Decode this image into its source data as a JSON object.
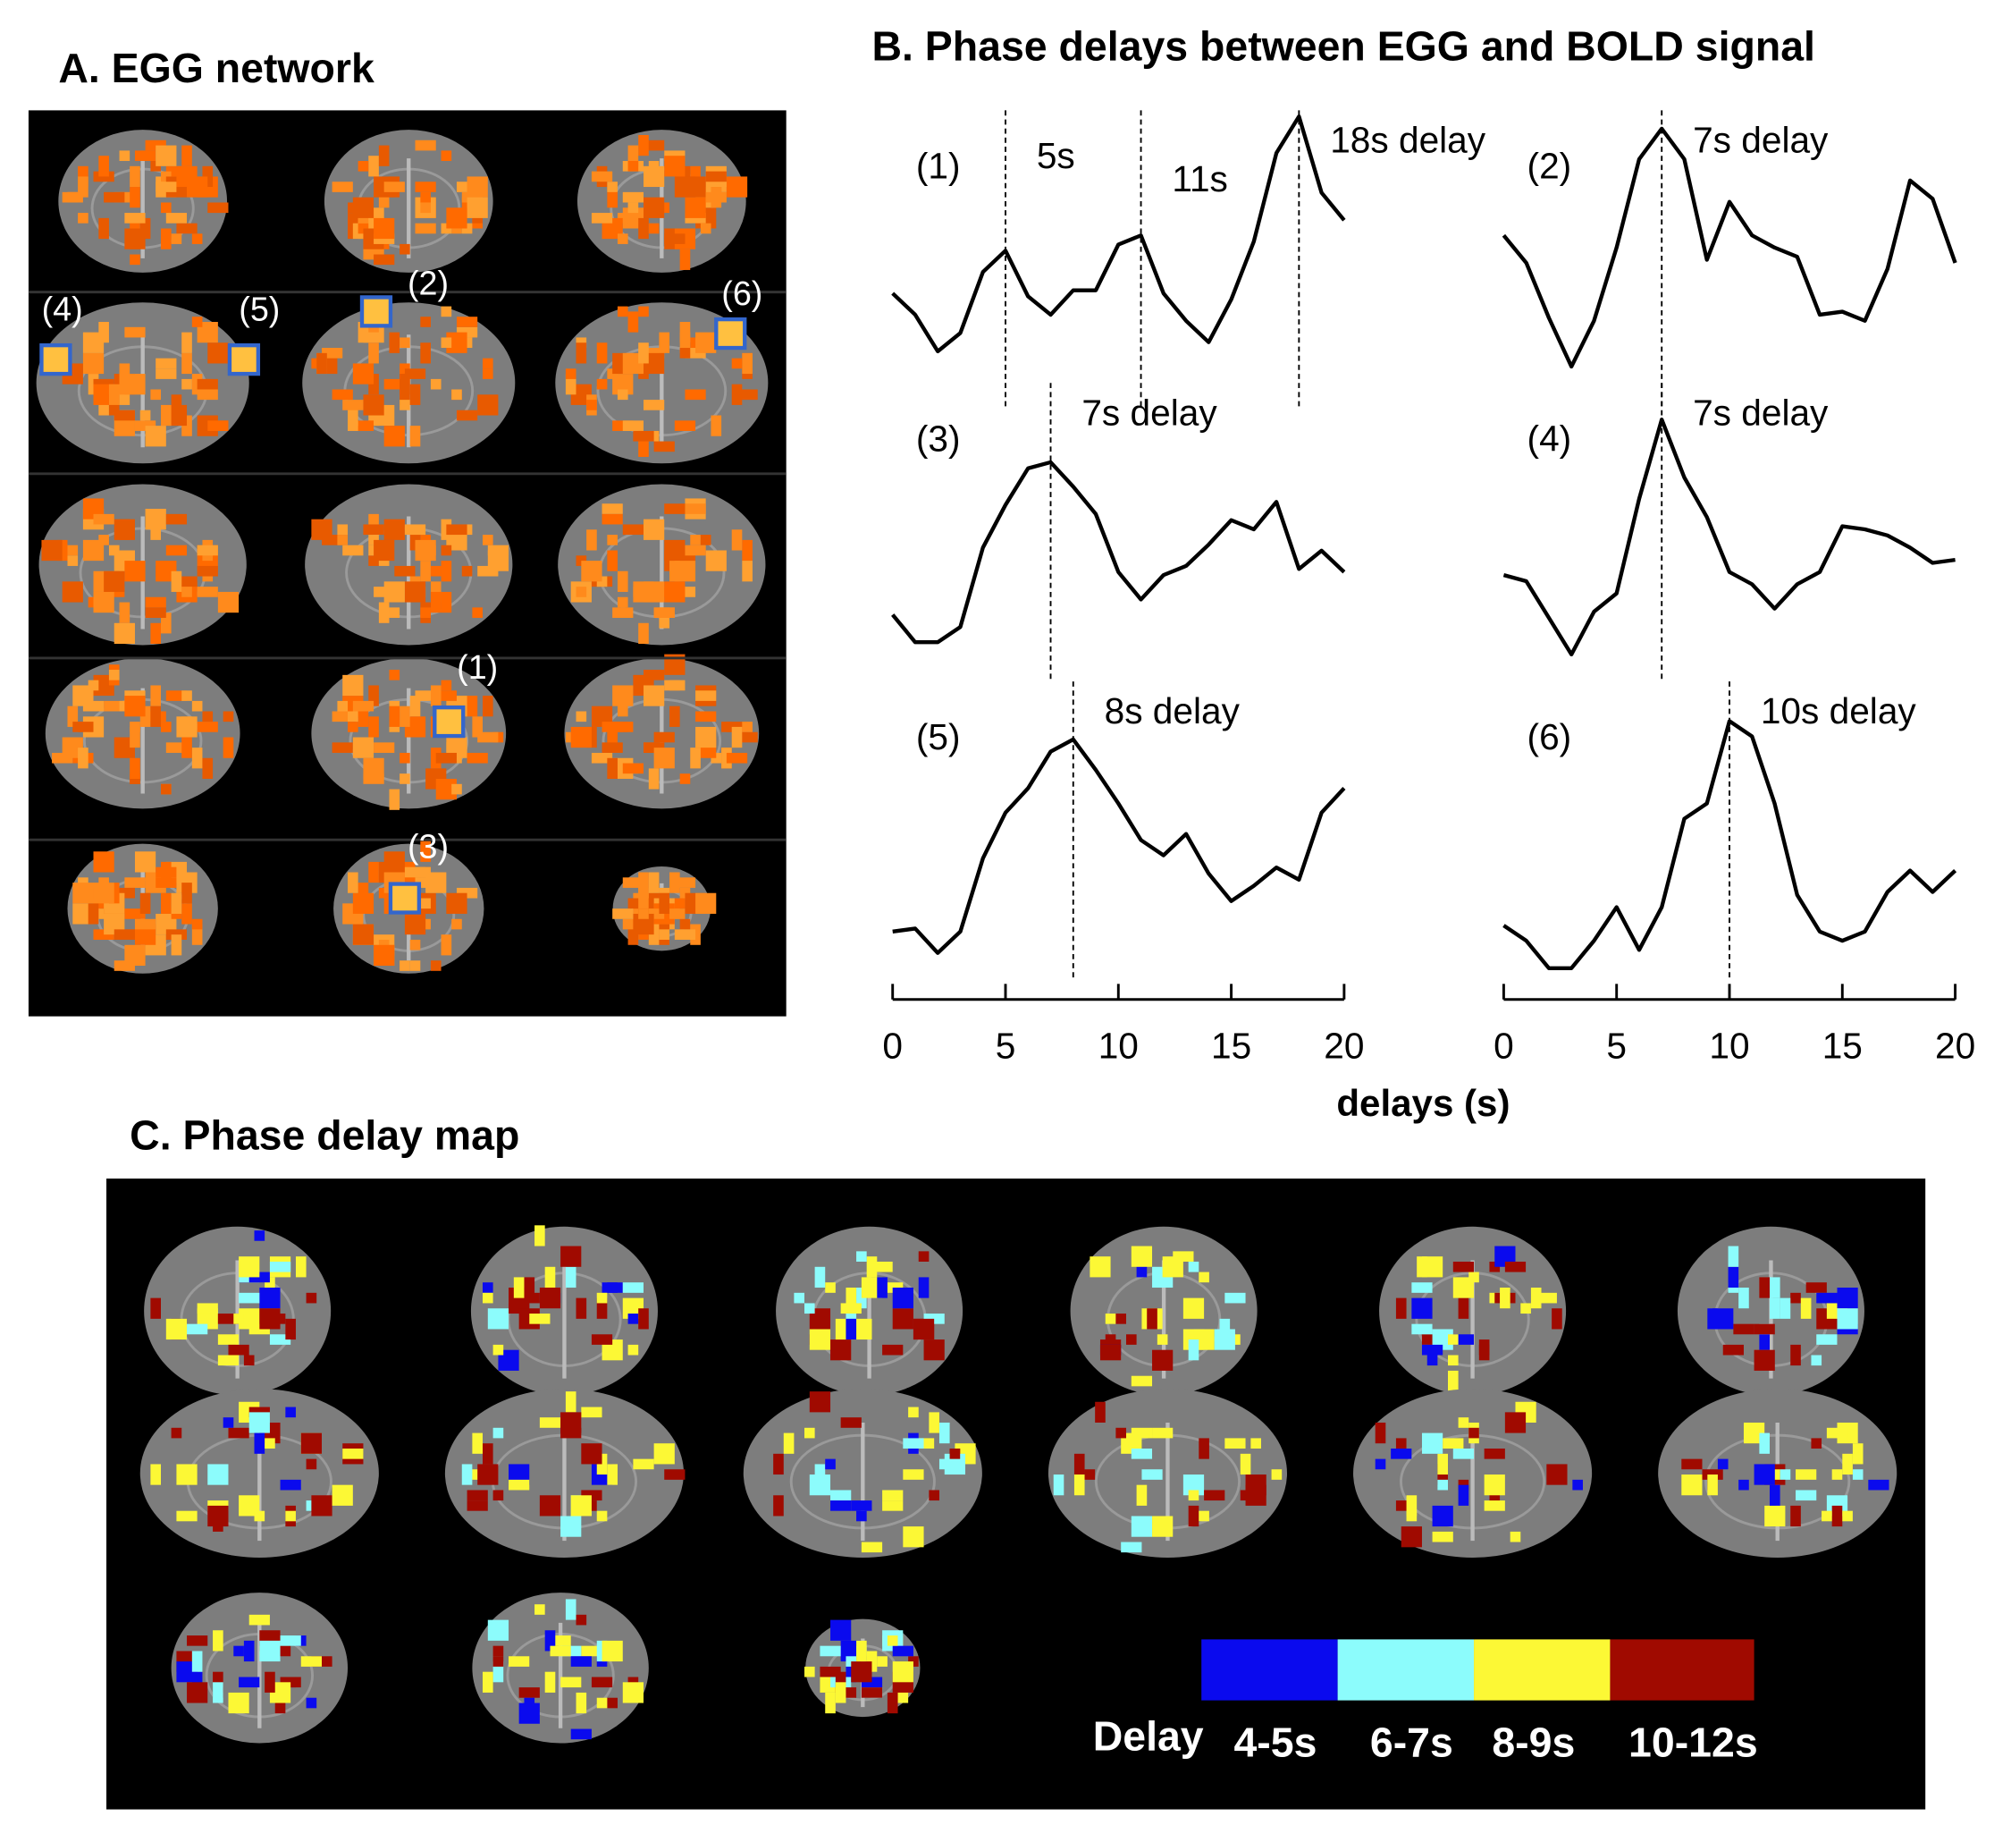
{
  "panel_a": {
    "title": "A. EGG network",
    "roi_labels": [
      "(1)",
      "(2)",
      "(3)",
      "(4)",
      "(5)",
      "(6)"
    ]
  },
  "panel_b": {
    "title": "B. Phase delays between EGG and BOLD signal",
    "x_label": "delays  (s)"
  },
  "chart_data": [
    {
      "type": "line",
      "label": "(1)",
      "xlim": [
        0,
        20
      ],
      "ylim": [
        0,
        10
      ],
      "x": [
        0,
        1,
        2,
        3,
        4,
        5,
        6,
        7,
        8,
        9,
        10,
        11,
        12,
        13,
        14,
        15,
        16,
        17,
        18,
        19,
        20
      ],
      "values": [
        4.0,
        3.3,
        2.1,
        2.7,
        4.7,
        5.4,
        3.9,
        3.3,
        4.1,
        4.1,
        5.6,
        5.9,
        4.0,
        3.1,
        2.4,
        3.8,
        5.7,
        8.6,
        9.8,
        7.3,
        6.4
      ],
      "annotations": [
        {
          "x": 5,
          "label": "5s"
        },
        {
          "x": 11,
          "label": "11s"
        },
        {
          "x": 18,
          "label": "18s delay"
        }
      ]
    },
    {
      "type": "line",
      "label": "(2)",
      "xlim": [
        0,
        20
      ],
      "ylim": [
        0,
        10
      ],
      "x": [
        0,
        1,
        2,
        3,
        4,
        5,
        6,
        7,
        8,
        9,
        10,
        11,
        12,
        13,
        14,
        15,
        16,
        17,
        18,
        19,
        20
      ],
      "values": [
        5.9,
        5.0,
        3.2,
        1.6,
        3.1,
        5.5,
        8.4,
        9.4,
        8.4,
        5.1,
        7.0,
        5.9,
        5.5,
        5.2,
        3.3,
        3.4,
        3.1,
        4.8,
        7.7,
        7.1,
        5.0
      ],
      "annotations": [
        {
          "x": 7,
          "label": "7s delay"
        }
      ]
    },
    {
      "type": "line",
      "label": "(3)",
      "xlim": [
        0,
        20
      ],
      "ylim": [
        0,
        10
      ],
      "x": [
        0,
        1,
        2,
        3,
        4,
        5,
        6,
        7,
        8,
        9,
        10,
        11,
        12,
        13,
        14,
        15,
        16,
        17,
        18,
        19,
        20
      ],
      "values": [
        2.4,
        1.5,
        1.5,
        2.0,
        4.6,
        6.0,
        7.2,
        7.4,
        6.6,
        5.7,
        3.8,
        2.9,
        3.7,
        4.0,
        4.7,
        5.5,
        5.2,
        6.1,
        3.9,
        4.5,
        3.8
      ],
      "annotations": [
        {
          "x": 7,
          "label": "7s delay"
        }
      ]
    },
    {
      "type": "line",
      "label": "(4)",
      "xlim": [
        0,
        20
      ],
      "ylim": [
        0,
        10
      ],
      "x": [
        0,
        1,
        2,
        3,
        4,
        5,
        6,
        7,
        8,
        9,
        10,
        11,
        12,
        13,
        14,
        15,
        16,
        17,
        18,
        19,
        20
      ],
      "values": [
        3.7,
        3.5,
        2.3,
        1.1,
        2.5,
        3.1,
        6.2,
        8.8,
        6.9,
        5.6,
        3.8,
        3.4,
        2.6,
        3.4,
        3.8,
        5.3,
        5.2,
        5.0,
        4.6,
        4.1,
        4.2
      ],
      "annotations": [
        {
          "x": 7,
          "label": "7s delay"
        }
      ]
    },
    {
      "type": "line",
      "label": "(5)",
      "xlim": [
        0,
        20
      ],
      "ylim": [
        0,
        10
      ],
      "xticks": [
        0,
        5,
        10,
        15,
        20
      ],
      "x": [
        0,
        1,
        2,
        3,
        4,
        5,
        6,
        7,
        8,
        9,
        10,
        11,
        12,
        13,
        14,
        15,
        16,
        17,
        18,
        19,
        20
      ],
      "values": [
        1.8,
        1.9,
        1.1,
        1.8,
        4.2,
        5.7,
        6.5,
        7.7,
        8.1,
        7.1,
        6.0,
        4.8,
        4.3,
        5.0,
        3.7,
        2.8,
        3.3,
        3.9,
        3.5,
        5.7,
        6.5
      ],
      "annotations": [
        {
          "x": 8,
          "label": "8s delay"
        }
      ]
    },
    {
      "type": "line",
      "label": "(6)",
      "xlim": [
        0,
        20
      ],
      "ylim": [
        0,
        10
      ],
      "xticks": [
        0,
        5,
        10,
        15,
        20
      ],
      "x": [
        0,
        1,
        2,
        3,
        4,
        5,
        6,
        7,
        8,
        9,
        10,
        11,
        12,
        13,
        14,
        15,
        16,
        17,
        18,
        19,
        20
      ],
      "values": [
        2.0,
        1.5,
        0.6,
        0.6,
        1.5,
        2.6,
        1.2,
        2.6,
        5.5,
        6.0,
        8.7,
        8.2,
        6.0,
        3.0,
        1.8,
        1.5,
        1.8,
        3.1,
        3.8,
        3.1,
        3.8
      ],
      "annotations": [
        {
          "x": 10,
          "label": "10s delay"
        }
      ]
    }
  ],
  "panel_c": {
    "title": "C. Phase delay map",
    "legend_title": "Delay",
    "legend": [
      {
        "label": "4-5s",
        "color": "#0a0aee"
      },
      {
        "label": "6-7s",
        "color": "#8cfcfc"
      },
      {
        "label": "8-9s",
        "color": "#fcf835"
      },
      {
        "label": "10-12s",
        "color": "#a00a00"
      }
    ]
  }
}
